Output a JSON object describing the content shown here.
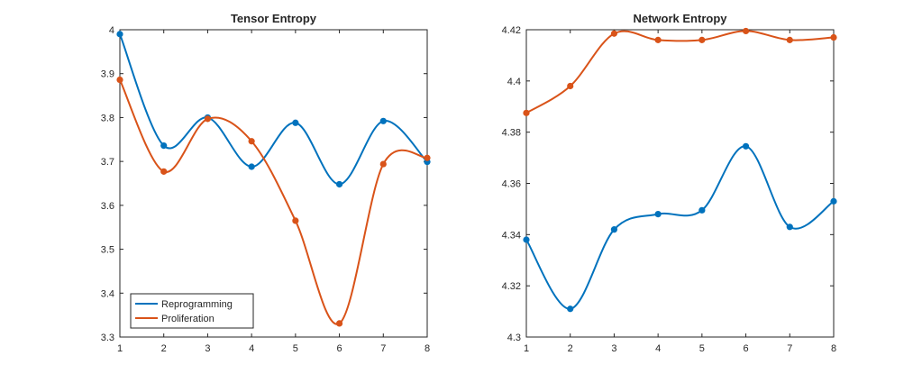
{
  "colors": {
    "series1": "#0072BD",
    "series2": "#D95319",
    "axes": "#262626",
    "background": "#ffffff"
  },
  "legend": {
    "placement": "bottom-left",
    "entries": [
      "Reprogramming",
      "Proliferation"
    ]
  },
  "chart_data": [
    {
      "type": "line",
      "title": "Tensor Entropy",
      "xlabel": "",
      "ylabel": "",
      "x": [
        1,
        2,
        3,
        4,
        5,
        6,
        7,
        8
      ],
      "xlim": [
        1,
        8
      ],
      "ylim": [
        3.3,
        4.0
      ],
      "xticks": [
        "1",
        "2",
        "3",
        "4",
        "5",
        "6",
        "7",
        "8"
      ],
      "yticks": [
        "3.3",
        "3.4",
        "3.5",
        "3.6",
        "3.7",
        "3.8",
        "3.9",
        "4"
      ],
      "grid": false,
      "smoothed": true,
      "legend": true,
      "series": [
        {
          "name": "Reprogramming",
          "values": [
            3.99,
            3.736,
            3.8,
            3.688,
            3.788,
            3.648,
            3.792,
            3.699
          ]
        },
        {
          "name": "Proliferation",
          "values": [
            3.886,
            3.677,
            3.797,
            3.746,
            3.565,
            3.331,
            3.694,
            3.708
          ]
        }
      ]
    },
    {
      "type": "line",
      "title": "Network Entropy",
      "xlabel": "",
      "ylabel": "",
      "x": [
        1,
        2,
        3,
        4,
        5,
        6,
        7,
        8
      ],
      "xlim": [
        1,
        8
      ],
      "ylim": [
        4.3,
        4.42
      ],
      "xticks": [
        "1",
        "2",
        "3",
        "4",
        "5",
        "6",
        "7",
        "8"
      ],
      "yticks": [
        "4.3",
        "4.32",
        "4.34",
        "4.36",
        "4.38",
        "4.4",
        "4.42"
      ],
      "grid": false,
      "smoothed": true,
      "legend": false,
      "series": [
        {
          "name": "Reprogramming",
          "values": [
            4.338,
            4.311,
            4.342,
            4.348,
            4.3495,
            4.3745,
            4.343,
            4.353
          ]
        },
        {
          "name": "Proliferation",
          "values": [
            4.3875,
            4.398,
            4.4185,
            4.416,
            4.416,
            4.4195,
            4.416,
            4.417
          ]
        }
      ]
    }
  ]
}
